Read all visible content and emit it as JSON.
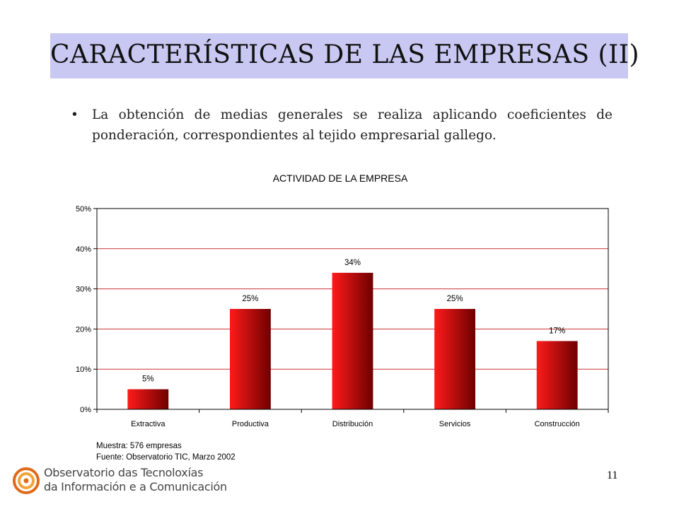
{
  "slide": {
    "title": "CARACTERÍSTICAS DE LAS EMPRESAS (II)",
    "bullet_symbol": "•",
    "bullet_text": "La obtención de medias generales se realiza aplicando coeficientes de ponderación, correspondientes al tejido empresarial gallego.",
    "page_number": "11"
  },
  "logo": {
    "line1": "Observatorio das Tecnoloxías",
    "line2": "da Información e a Comunicación",
    "colors": [
      "#e06a1b",
      "#f2a33a"
    ]
  },
  "notes": {
    "sample": "Muestra: 576 empresas",
    "source": "Fuente: Observatorio TIC,  Marzo 2002"
  },
  "chart_data": {
    "type": "bar",
    "title": "ACTIVIDAD DE LA EMPRESA",
    "categories": [
      "Extractiva",
      "Productiva",
      "Distribución",
      "Servicios",
      "Construcción"
    ],
    "values": [
      5,
      25,
      34,
      25,
      17
    ],
    "value_labels": [
      "5%",
      "25%",
      "34%",
      "25%",
      "17%"
    ],
    "ylim": [
      0,
      50
    ],
    "yticks": [
      0,
      10,
      20,
      30,
      40,
      50
    ],
    "ytick_labels": [
      "0%",
      "10%",
      "20%",
      "30%",
      "40%",
      "50%"
    ],
    "grid": true,
    "legend": "none",
    "colors": {
      "bar_light": "#ff1a1a",
      "bar_dark": "#6e0000",
      "grid": "#c83232"
    }
  }
}
